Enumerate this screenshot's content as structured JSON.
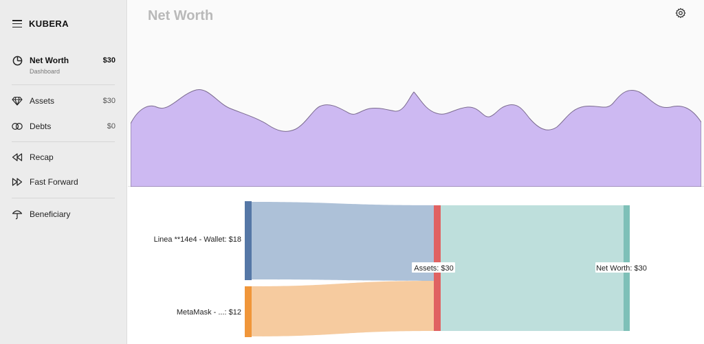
{
  "app": {
    "brand": "KUBERA"
  },
  "sidebar": {
    "items": [
      {
        "label": "Net Worth",
        "sub": "Dashboard",
        "value": "$30",
        "icon": "pie-chart-icon"
      },
      {
        "label": "Assets",
        "value": "$30",
        "icon": "diamond-icon"
      },
      {
        "label": "Debts",
        "value": "$0",
        "icon": "rings-icon"
      },
      {
        "label": "Recap",
        "icon": "rewind-icon"
      },
      {
        "label": "Fast Forward",
        "icon": "fast-forward-icon"
      },
      {
        "label": "Beneficiary",
        "icon": "umbrella-icon"
      }
    ]
  },
  "header": {
    "title": "Net Worth"
  },
  "sankey": {
    "sources": [
      {
        "label": "Linea **14e4 - Wallet: $18",
        "value": 18,
        "color": "#5a7faa"
      },
      {
        "label": "MetaMask - ...: $12",
        "value": 12,
        "color": "#f0963a"
      }
    ],
    "middle": {
      "label": "Assets: $30",
      "value": 30,
      "color": "#e06060"
    },
    "target": {
      "label": "Net Worth: $30",
      "value": 30,
      "color": "#7ec0b8"
    }
  },
  "colors": {
    "wave_fill": "#cdb9f2",
    "wave_stroke": "#7a6a8e"
  }
}
